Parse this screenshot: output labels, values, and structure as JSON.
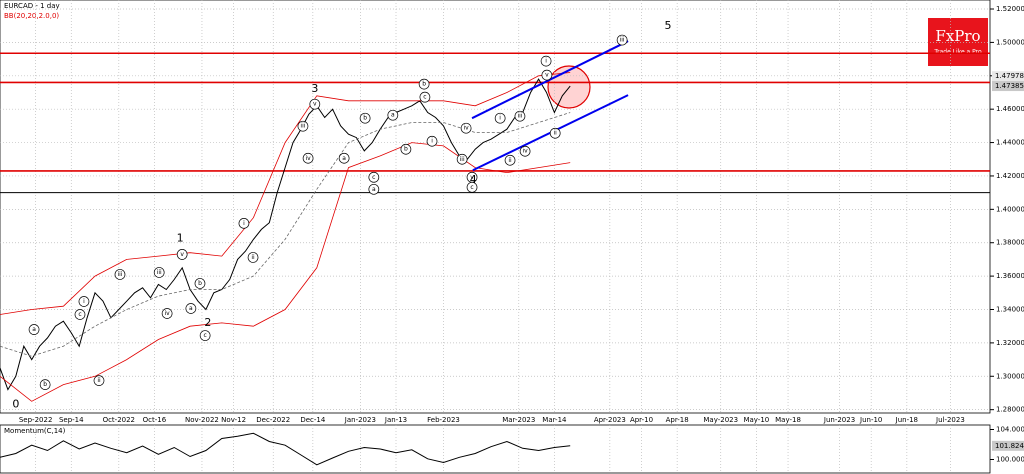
{
  "chart_data": [
    {
      "type": "line",
      "title": "EURCAD - 1 day",
      "subtitle": "BB(20,20,2.0,0)",
      "brand": "FxPro",
      "tagline": "Trade Like a Pro",
      "xlim": [
        0,
        250
      ],
      "ylim": [
        1.278,
        1.5254
      ],
      "grid": true,
      "xticks": [
        {
          "value": 9,
          "label": "Sep-2022"
        },
        {
          "value": 18,
          "label": "Sep-14"
        },
        {
          "value": 30,
          "label": "Oct-2022"
        },
        {
          "value": 39,
          "label": "Oct-16"
        },
        {
          "value": 51,
          "label": "Nov-2022"
        },
        {
          "value": 59,
          "label": "Nov-12"
        },
        {
          "value": 69,
          "label": "Dec-2022"
        },
        {
          "value": 79,
          "label": "Dec-14"
        },
        {
          "value": 91,
          "label": "Jan-2023"
        },
        {
          "value": 100,
          "label": "Jan-13"
        },
        {
          "value": 112,
          "label": "Feb-2023"
        },
        {
          "value": 131,
          "label": "Mar-2023"
        },
        {
          "value": 140,
          "label": "Mar-14"
        },
        {
          "value": 154,
          "label": "Apr-2023"
        },
        {
          "value": 162,
          "label": "Apr-10"
        },
        {
          "value": 171,
          "label": "Apr-18"
        },
        {
          "value": 182,
          "label": "May-2023"
        },
        {
          "value": 191,
          "label": "May-10"
        },
        {
          "value": 199,
          "label": "May-18"
        },
        {
          "value": 212,
          "label": "Jun-2023"
        },
        {
          "value": 220,
          "label": "Jun-10"
        },
        {
          "value": 229,
          "label": "Jun-18"
        },
        {
          "value": 240,
          "label": "Jul-2023"
        }
      ],
      "yticks": [
        {
          "value": 1.28,
          "label": "1.28000"
        },
        {
          "value": 1.3,
          "label": "1.30000"
        },
        {
          "value": 1.32,
          "label": "1.32000"
        },
        {
          "value": 1.34,
          "label": "1.34000"
        },
        {
          "value": 1.36,
          "label": "1.36000"
        },
        {
          "value": 1.38,
          "label": "1.38000"
        },
        {
          "value": 1.4,
          "label": "1.40000"
        },
        {
          "value": 1.42,
          "label": "1.42000"
        },
        {
          "value": 1.44,
          "label": "1.44000"
        },
        {
          "value": 1.46,
          "label": "1.46000"
        },
        {
          "value": 1.48,
          "label": "1.48000"
        },
        {
          "value": 1.5,
          "label": "1.50000"
        },
        {
          "value": 1.52,
          "label": "1.52000"
        }
      ],
      "price_marks": [
        {
          "value": 1.47978,
          "color": "#e8e8e8"
        },
        {
          "value": 1.47385,
          "color": "#c8c8c8"
        }
      ],
      "levels": [
        {
          "value": 1.4935,
          "color": "#e00000"
        },
        {
          "value": 1.476,
          "color": "#e00000"
        },
        {
          "value": 1.423,
          "color": "#e00000"
        },
        {
          "value": 1.41,
          "color": "#000000"
        }
      ],
      "channel": {
        "color": "#0000ee",
        "lines": [
          {
            "x": [
              119.2,
              158.6
            ],
            "values": [
              1.4546,
              1.5008
            ]
          },
          {
            "x": [
              119.4,
              158.6
            ],
            "values": [
              1.4234,
              1.4684
            ]
          }
        ]
      },
      "series": [
        {
          "color": "#000000",
          "x": [
            0,
            2,
            4,
            6,
            8,
            10,
            12,
            14,
            16,
            18,
            20,
            22,
            24,
            26,
            28,
            30,
            32,
            34,
            36,
            38,
            40,
            42,
            44,
            46,
            48,
            50,
            52,
            54,
            56,
            58,
            60,
            62,
            64,
            66,
            68,
            70,
            72,
            74,
            76,
            78,
            80,
            82,
            84,
            86,
            88,
            90,
            92,
            94,
            96,
            98,
            100,
            102,
            104,
            106,
            108,
            110,
            112,
            114,
            116,
            118,
            120,
            122,
            124,
            126,
            128,
            130,
            132,
            134,
            136,
            138,
            140,
            142,
            144
          ],
          "values": [
            1.305,
            1.292,
            1.3,
            1.318,
            1.31,
            1.318,
            1.323,
            1.33,
            1.333,
            1.326,
            1.318,
            1.335,
            1.35,
            1.345,
            1.335,
            1.34,
            1.345,
            1.35,
            1.353,
            1.347,
            1.355,
            1.352,
            1.358,
            1.365,
            1.352,
            1.345,
            1.34,
            1.35,
            1.352,
            1.358,
            1.37,
            1.375,
            1.382,
            1.388,
            1.392,
            1.41,
            1.425,
            1.44,
            1.448,
            1.457,
            1.462,
            1.455,
            1.46,
            1.45,
            1.445,
            1.443,
            1.435,
            1.44,
            1.448,
            1.455,
            1.458,
            1.46,
            1.462,
            1.465,
            1.458,
            1.455,
            1.45,
            1.44,
            1.432,
            1.43,
            1.436,
            1.44,
            1.442,
            1.445,
            1.448,
            1.455,
            1.458,
            1.47,
            1.478,
            1.47,
            1.458,
            1.468,
            1.4738
          ]
        },
        {
          "color": "#e00000",
          "x": [
            0,
            8,
            16,
            24,
            32,
            40,
            48,
            56,
            64,
            72,
            80,
            88,
            96,
            104,
            112,
            120,
            128,
            136,
            144
          ],
          "values": [
            1.337,
            1.34,
            1.342,
            1.36,
            1.37,
            1.372,
            1.374,
            1.372,
            1.395,
            1.44,
            1.468,
            1.465,
            1.465,
            1.465,
            1.465,
            1.462,
            1.47,
            1.48,
            1.482
          ]
        },
        {
          "color": "#666666",
          "dash": true,
          "x": [
            0,
            8,
            16,
            24,
            32,
            40,
            48,
            56,
            64,
            72,
            80,
            88,
            96,
            104,
            112,
            120,
            128,
            136,
            144
          ],
          "values": [
            1.318,
            1.312,
            1.318,
            1.33,
            1.34,
            1.348,
            1.352,
            1.352,
            1.36,
            1.382,
            1.412,
            1.44,
            1.448,
            1.452,
            1.452,
            1.446,
            1.446,
            1.452,
            1.458
          ]
        },
        {
          "color": "#e00000",
          "x": [
            0,
            8,
            16,
            24,
            32,
            40,
            48,
            56,
            64,
            72,
            80,
            88,
            96,
            104,
            112,
            120,
            128,
            136,
            144
          ],
          "values": [
            1.3,
            1.285,
            1.295,
            1.3,
            1.31,
            1.322,
            1.33,
            1.332,
            1.33,
            1.34,
            1.365,
            1.425,
            1.432,
            1.44,
            1.438,
            1.425,
            1.422,
            1.425,
            1.428
          ]
        }
      ],
      "wave_degree_labels": [
        {
          "text": "0",
          "x": 4,
          "y": 1.283
        },
        {
          "text": "1",
          "x": 45.5,
          "y": 1.3825
        },
        {
          "text": "2",
          "x": 52.5,
          "y": 1.332
        },
        {
          "text": "3",
          "x": 79.5,
          "y": 1.472
        },
        {
          "text": "4",
          "x": 119.5,
          "y": 1.4175
        },
        {
          "text": "5",
          "x": 168.7,
          "y": 1.5098
        }
      ],
      "wave_labels": [
        {
          "text": "i",
          "x": 137.9,
          "y": 1.4888
        },
        {
          "text": "v",
          "x": 138.1,
          "y": 1.4804
        },
        {
          "text": "iii",
          "x": 157.1,
          "y": 1.5014
        },
        {
          "text": "ii",
          "x": 140.2,
          "y": 1.4456
        },
        {
          "text": "iv",
          "x": 117.7,
          "y": 1.4486
        },
        {
          "text": "iii",
          "x": 116.7,
          "y": 1.43
        },
        {
          "text": "v",
          "x": 119.2,
          "y": 1.4192
        },
        {
          "text": "c",
          "x": 119.2,
          "y": 1.4132
        },
        {
          "text": "c",
          "x": 94.4,
          "y": 1.4192
        },
        {
          "text": "a",
          "x": 94.4,
          "y": 1.412
        },
        {
          "text": "v",
          "x": 79.5,
          "y": 1.463
        },
        {
          "text": "iii",
          "x": 76.5,
          "y": 1.4498
        },
        {
          "text": "iv",
          "x": 77.8,
          "y": 1.4306
        },
        {
          "text": "b",
          "x": 92.2,
          "y": 1.4546
        },
        {
          "text": "a",
          "x": 86.9,
          "y": 1.4306
        },
        {
          "text": "b",
          "x": 107.1,
          "y": 1.475
        },
        {
          "text": "c",
          "x": 107.3,
          "y": 1.4672
        },
        {
          "text": "a",
          "x": 99.2,
          "y": 1.4564
        },
        {
          "text": "b",
          "x": 102.5,
          "y": 1.436
        },
        {
          "text": "i",
          "x": 109.1,
          "y": 1.4408
        },
        {
          "text": "i",
          "x": 126.3,
          "y": 1.4546
        },
        {
          "text": "iii",
          "x": 131.3,
          "y": 1.4558
        },
        {
          "text": "iv",
          "x": 132.6,
          "y": 1.4348
        },
        {
          "text": "ii",
          "x": 128.8,
          "y": 1.4294
        },
        {
          "text": "v",
          "x": 46,
          "y": 1.373
        },
        {
          "text": "iii",
          "x": 40.2,
          "y": 1.3622
        },
        {
          "text": "b",
          "x": 50.5,
          "y": 1.3556
        },
        {
          "text": "a",
          "x": 48.2,
          "y": 1.3406
        },
        {
          "text": "c",
          "x": 51.8,
          "y": 1.3244
        },
        {
          "text": "i",
          "x": 61.6,
          "y": 1.3916
        },
        {
          "text": "ii",
          "x": 63.9,
          "y": 1.3712
        },
        {
          "text": "iii",
          "x": 30.3,
          "y": 1.361
        },
        {
          "text": "iv",
          "x": 42.2,
          "y": 1.3376
        },
        {
          "text": "i",
          "x": 21.2,
          "y": 1.3448
        },
        {
          "text": "c",
          "x": 20.2,
          "y": 1.337
        },
        {
          "text": "a",
          "x": 8.6,
          "y": 1.328
        },
        {
          "text": "b",
          "x": 11.4,
          "y": 1.295
        },
        {
          "text": "ii",
          "x": 25,
          "y": 1.2974
        }
      ]
    },
    {
      "type": "line",
      "title": "Momentum(C,14)",
      "xlim": [
        0,
        250
      ],
      "ylim": [
        98.2,
        104.6
      ],
      "yticks": [
        {
          "value": 104,
          "label": "104.000"
        },
        {
          "value": 100,
          "label": "100.000"
        }
      ],
      "price_marks": [
        {
          "value": 101.824,
          "color": "#c8c8c8"
        }
      ],
      "series": [
        {
          "color": "#000000",
          "x": [
            0,
            4,
            8,
            12,
            16,
            20,
            24,
            28,
            32,
            36,
            40,
            44,
            48,
            52,
            56,
            60,
            64,
            68,
            72,
            76,
            80,
            84,
            88,
            92,
            96,
            100,
            104,
            108,
            112,
            116,
            120,
            124,
            128,
            132,
            136,
            140,
            144
          ],
          "values": [
            100.3,
            100.8,
            101.9,
            101.2,
            102.5,
            101.4,
            102.2,
            101.5,
            100.9,
            101.8,
            100.7,
            101.6,
            100.4,
            101.2,
            102.8,
            103.1,
            103.5,
            102.4,
            101.9,
            100.6,
            99.3,
            100.2,
            101.1,
            101.6,
            101.4,
            100.9,
            101.3,
            100.1,
            99.6,
            100.3,
            100.8,
            101.7,
            102.4,
            101.5,
            101.2,
            101.6,
            101.824
          ]
        }
      ]
    }
  ]
}
